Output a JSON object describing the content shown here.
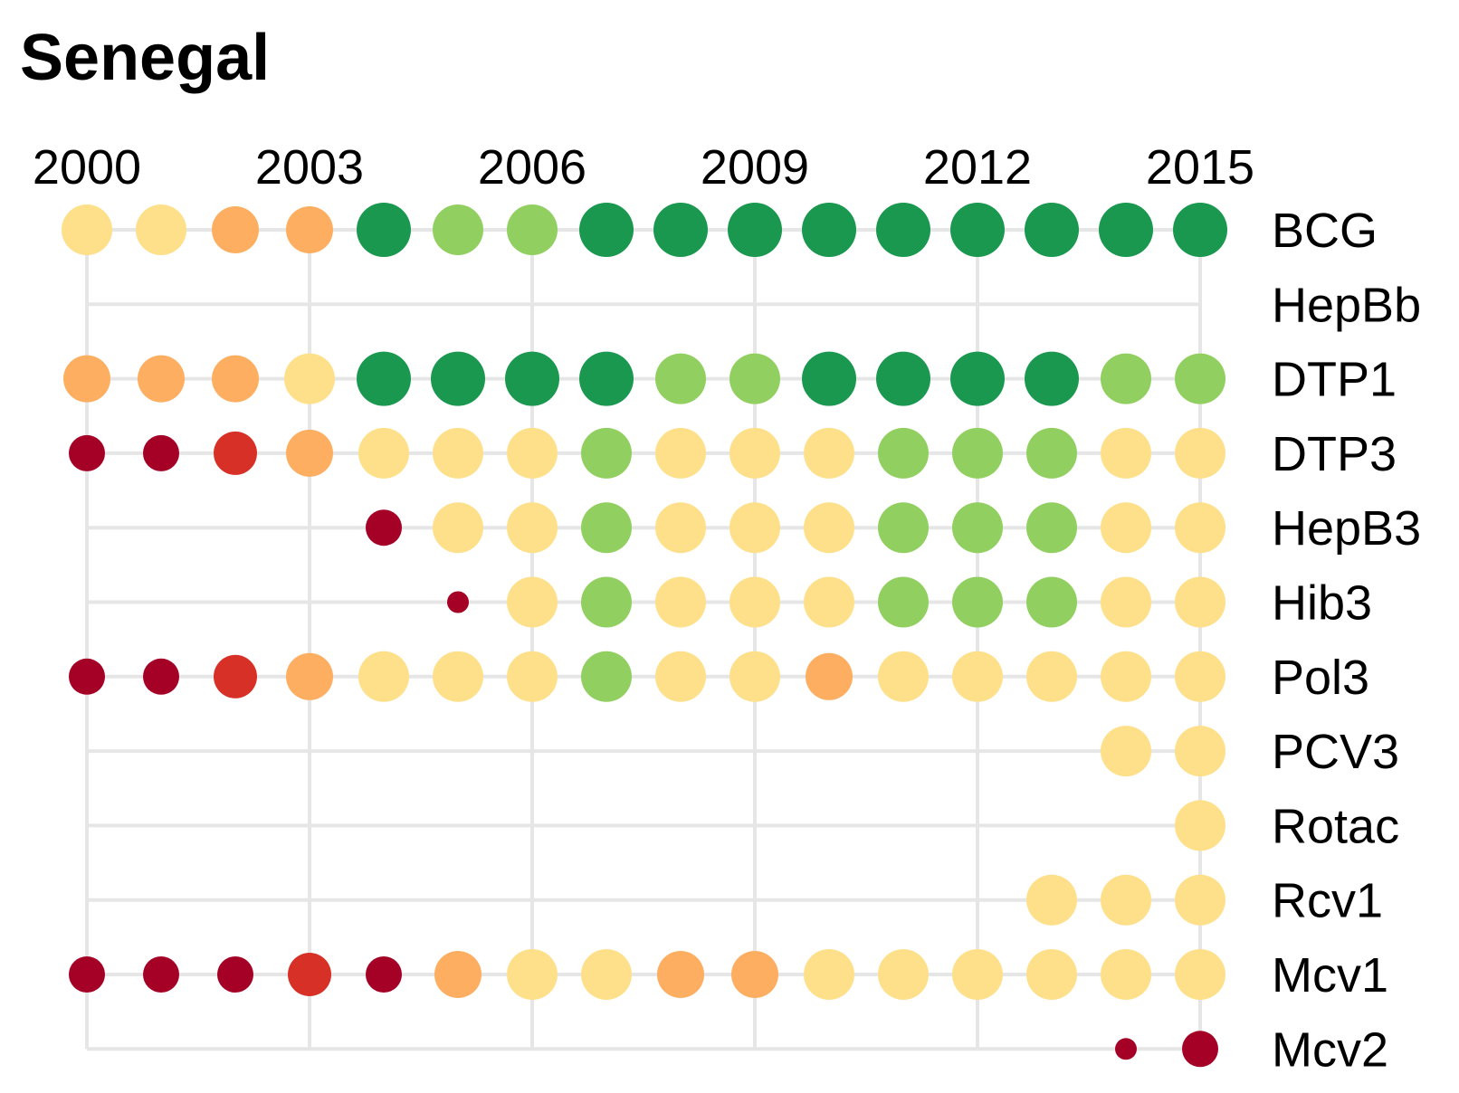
{
  "chart_data": {
    "type": "scatter",
    "title": "Senegal",
    "x_ticks": [
      2000,
      2003,
      2006,
      2009,
      2012,
      2015
    ],
    "years": [
      2000,
      2001,
      2002,
      2003,
      2004,
      2005,
      2006,
      2007,
      2008,
      2009,
      2010,
      2011,
      2012,
      2013,
      2014,
      2015
    ],
    "xlim": [
      2000,
      2015
    ],
    "x_axis_position": "top",
    "legend": "none",
    "grid": true,
    "colors": {
      "1": "#a50026",
      "2": "#d73027",
      "3": "#fdae61",
      "4": "#fee08b",
      "5": "#91d060",
      "6": "#1a9850"
    },
    "series": [
      {
        "name": "BCG",
        "levels": [
          4,
          4,
          3,
          3,
          6,
          5,
          5,
          6,
          6,
          6,
          6,
          6,
          6,
          6,
          6,
          6
        ]
      },
      {
        "name": "HepBb",
        "levels": [
          null,
          null,
          null,
          null,
          null,
          null,
          null,
          null,
          null,
          null,
          null,
          null,
          null,
          null,
          null,
          null
        ]
      },
      {
        "name": "DTP1",
        "levels": [
          3,
          3,
          3,
          4,
          6,
          6,
          6,
          6,
          5,
          5,
          6,
          6,
          6,
          6,
          5,
          5
        ]
      },
      {
        "name": "DTP3",
        "levels": [
          1,
          1,
          2,
          3,
          4,
          4,
          4,
          5,
          4,
          4,
          4,
          5,
          5,
          5,
          4,
          4
        ]
      },
      {
        "name": "HepB3",
        "levels": [
          null,
          null,
          null,
          null,
          1,
          4,
          4,
          5,
          4,
          4,
          4,
          5,
          5,
          5,
          4,
          4
        ]
      },
      {
        "name": "Hib3",
        "levels": [
          null,
          null,
          null,
          null,
          null,
          0,
          4,
          5,
          4,
          4,
          4,
          5,
          5,
          5,
          4,
          4
        ]
      },
      {
        "name": "Pol3",
        "levels": [
          1,
          1,
          2,
          3,
          4,
          4,
          4,
          5,
          4,
          4,
          3,
          4,
          4,
          4,
          4,
          4
        ]
      },
      {
        "name": "PCV3",
        "levels": [
          null,
          null,
          null,
          null,
          null,
          null,
          null,
          null,
          null,
          null,
          null,
          null,
          null,
          null,
          4,
          4
        ]
      },
      {
        "name": "Rotac",
        "levels": [
          null,
          null,
          null,
          null,
          null,
          null,
          null,
          null,
          null,
          null,
          null,
          null,
          null,
          null,
          null,
          4
        ]
      },
      {
        "name": "Rcv1",
        "levels": [
          null,
          null,
          null,
          null,
          null,
          null,
          null,
          null,
          null,
          null,
          null,
          null,
          null,
          4,
          4,
          4
        ]
      },
      {
        "name": "Mcv1",
        "levels": [
          1,
          1,
          1,
          2,
          1,
          3,
          4,
          4,
          3,
          3,
          4,
          4,
          4,
          4,
          4,
          4
        ]
      },
      {
        "name": "Mcv2",
        "levels": [
          null,
          null,
          null,
          null,
          null,
          null,
          null,
          null,
          null,
          null,
          null,
          null,
          null,
          null,
          0,
          1
        ]
      }
    ]
  }
}
